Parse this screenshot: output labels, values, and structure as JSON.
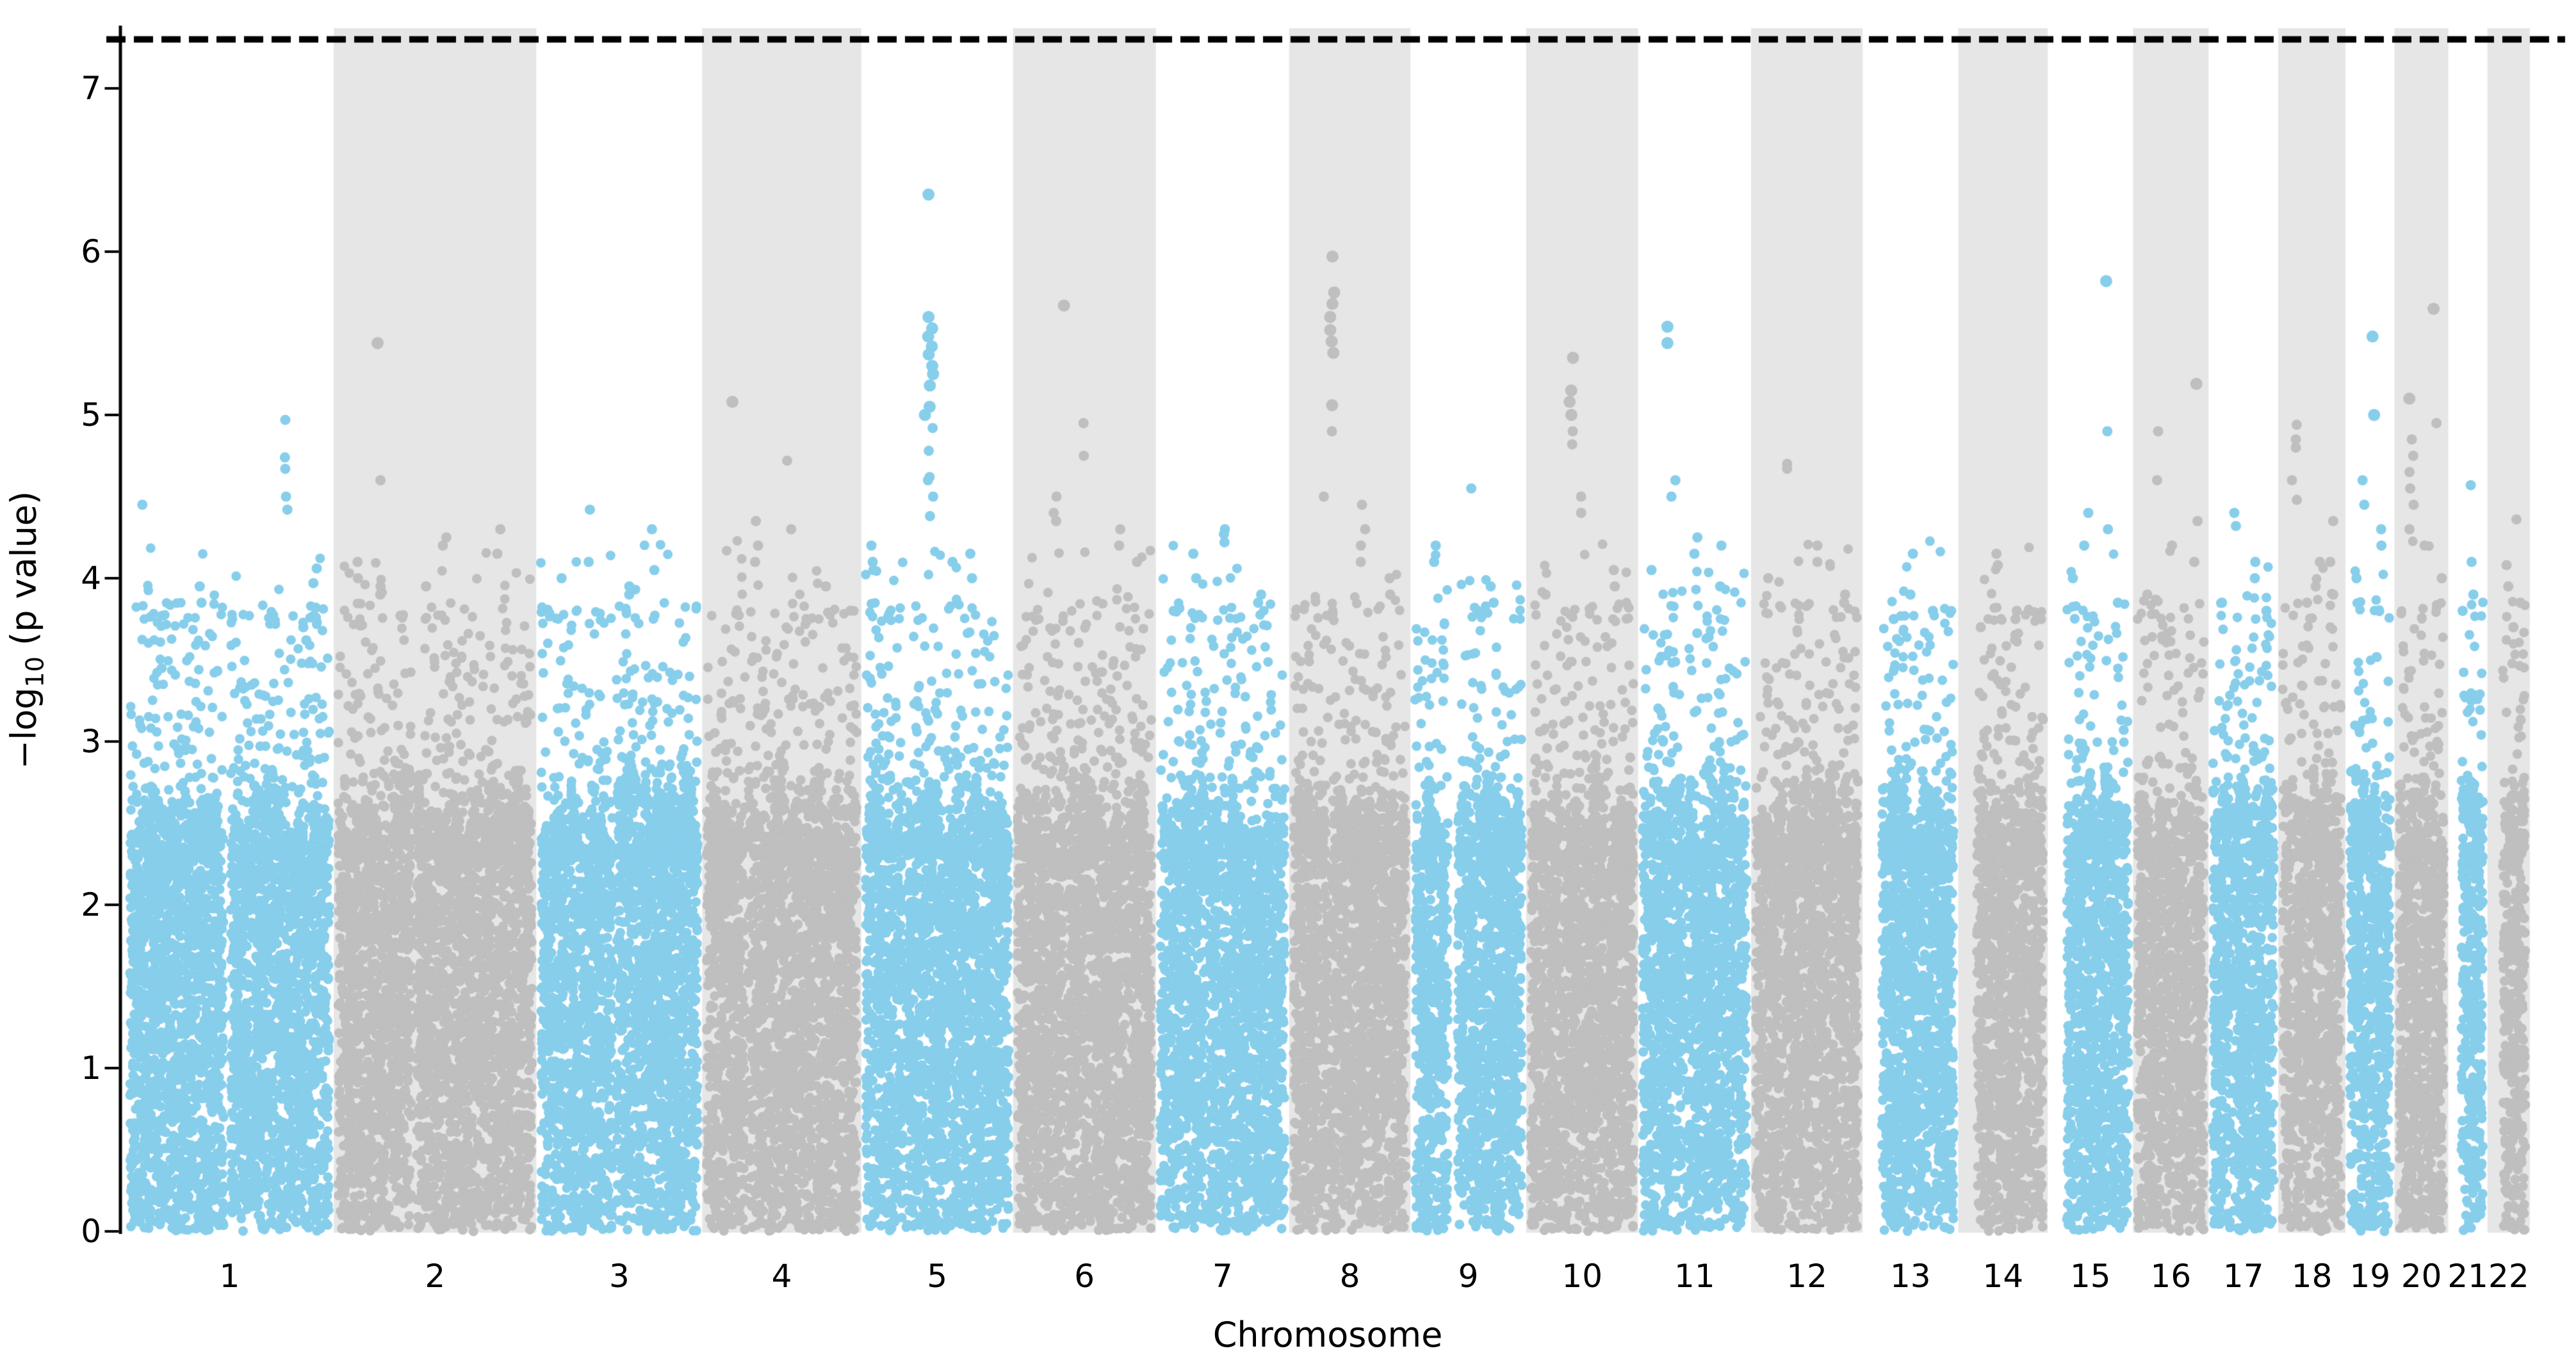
{
  "chart_data": {
    "type": "scatter",
    "subtype": "manhattan-gwas",
    "title": "",
    "xlabel": "Chromosome",
    "ylabel": "-log10 (p value)",
    "ylabel_parts": {
      "prefix": "−log",
      "sub": "10",
      "suffix": " (p value)"
    },
    "ylim": [
      0,
      7.37
    ],
    "yticks": [
      0,
      1,
      2,
      3,
      4,
      5,
      6,
      7
    ],
    "x_tick_labels": [
      "1",
      "2",
      "3",
      "4",
      "5",
      "6",
      "7",
      "8",
      "9",
      "10",
      "11",
      "12",
      "13",
      "14",
      "15",
      "16",
      "17",
      "18",
      "19",
      "20",
      "21",
      "22"
    ],
    "grid": false,
    "legend": "none",
    "threshold_line": {
      "value_neg_log10_p": 7.3,
      "style": "dashed",
      "color": "#000000"
    },
    "colors": {
      "odd_chromosome_points": "#87ceeb",
      "even_chromosome_points": "#bfbfbf",
      "even_chromosome_band": "#e6e6e6",
      "axis": "#000000",
      "background": "#ffffff"
    },
    "point_distribution": {
      "dense_floor_max": 2.35,
      "dense_noise_amplitude": 0.55,
      "mid_scatter_range": [
        2.3,
        3.85
      ],
      "high_scatter_range": [
        3.75,
        4.25
      ],
      "random_seed": 1337
    },
    "chromosomes": [
      {
        "name": "1",
        "length_mb": 249.0,
        "color": "blue",
        "band": false,
        "gaps": [
          [
            0.47,
            0.505
          ]
        ],
        "clusters": [
          [
            0.78,
            [
              4.97,
              4.74,
              4.67,
              4.5,
              4.42
            ]
          ],
          [
            0.05,
            [
              4.45
            ]
          ],
          [
            0.93,
            [
              4.06,
              3.97,
              3.82,
              3.76
            ]
          ],
          [
            0.35,
            [
              3.95,
              3.85
            ]
          ],
          [
            0.88,
            [
              3.7,
              3.62
            ]
          ]
        ]
      },
      {
        "name": "2",
        "length_mb": 242.2,
        "color": "gray",
        "band": true,
        "gaps": [
          [
            0.38,
            0.405
          ]
        ],
        "clusters": [
          [
            0.21,
            [
              5.44
            ]
          ],
          [
            0.215,
            [
              4.6,
              3.95,
              3.9
            ]
          ],
          [
            0.55,
            [
              4.25,
              4.2
            ]
          ],
          [
            0.83,
            [
              4.3,
              4.15
            ]
          ],
          [
            0.1,
            [
              4.1,
              4.0
            ]
          ],
          [
            0.45,
            [
              3.95
            ]
          ]
        ]
      },
      {
        "name": "3",
        "length_mb": 198.3,
        "color": "blue",
        "band": false,
        "gaps": [
          [
            0.455,
            0.48
          ]
        ],
        "clusters": [
          [
            0.32,
            [
              4.42,
              4.1
            ]
          ],
          [
            0.72,
            [
              4.3,
              4.05
            ]
          ],
          [
            0.55,
            [
              3.95,
              3.9
            ]
          ],
          [
            0.12,
            [
              4.0
            ]
          ]
        ]
      },
      {
        "name": "4",
        "length_mb": 190.2,
        "color": "gray",
        "band": true,
        "gaps": [
          [
            0.255,
            0.278
          ]
        ],
        "clusters": [
          [
            0.16,
            [
              5.08
            ]
          ],
          [
            0.55,
            [
              4.72,
              4.3
            ]
          ],
          [
            0.33,
            [
              4.35,
              4.2,
              4.1
            ]
          ],
          [
            0.8,
            [
              3.95
            ]
          ]
        ]
      },
      {
        "name": "5",
        "length_mb": 181.5,
        "color": "blue",
        "band": false,
        "gaps": [
          [
            0.26,
            0.283
          ]
        ],
        "clusters": [
          [
            0.455,
            [
              6.35,
              5.6,
              5.53,
              5.48,
              5.42,
              5.37,
              5.3,
              5.25,
              5.18,
              5.05,
              4.92,
              4.78,
              4.62,
              4.5,
              4.38
            ]
          ],
          [
            0.42,
            [
              5.0,
              4.6
            ]
          ],
          [
            0.05,
            [
              4.2,
              4.1,
              4.05
            ]
          ],
          [
            0.75,
            [
              4.15,
              4.0
            ]
          ],
          [
            0.6,
            [
              4.1
            ]
          ]
        ]
      },
      {
        "name": "6",
        "length_mb": 170.8,
        "color": "gray",
        "band": true,
        "gaps": [
          [
            0.355,
            0.378
          ]
        ],
        "clusters": [
          [
            0.35,
            [
              5.67
            ]
          ],
          [
            0.5,
            [
              4.95,
              4.75
            ]
          ],
          [
            0.28,
            [
              4.5,
              4.4,
              4.35
            ]
          ],
          [
            0.75,
            [
              4.3,
              4.2
            ]
          ],
          [
            0.9,
            [
              4.1
            ]
          ]
        ]
      },
      {
        "name": "7",
        "length_mb": 159.3,
        "color": "blue",
        "band": false,
        "gaps": [
          [
            0.375,
            0.398
          ]
        ],
        "clusters": [
          [
            0.52,
            [
              4.3,
              4.27,
              4.22
            ]
          ],
          [
            0.28,
            [
              4.15,
              4.0
            ]
          ],
          [
            0.8,
            [
              3.9,
              3.85
            ]
          ],
          [
            0.1,
            [
              3.8
            ]
          ]
        ]
      },
      {
        "name": "8",
        "length_mb": 145.1,
        "color": "gray",
        "band": true,
        "gaps": [
          [
            0.305,
            0.328
          ]
        ],
        "clusters": [
          [
            0.34,
            [
              5.97,
              5.75,
              5.68,
              5.6,
              5.52,
              5.45,
              5.38,
              5.06,
              4.9
            ]
          ],
          [
            0.62,
            [
              4.45,
              4.3,
              4.2,
              4.1
            ]
          ],
          [
            0.25,
            [
              4.5
            ]
          ],
          [
            0.85,
            [
              4.0,
              3.9
            ]
          ]
        ]
      },
      {
        "name": "9",
        "length_mb": 138.4,
        "color": "blue",
        "band": false,
        "gaps": [
          [
            0.31,
            0.4
          ]
        ],
        "clusters": [
          [
            0.52,
            [
              4.55
            ]
          ],
          [
            0.18,
            [
              4.2,
              4.1
            ]
          ],
          [
            0.72,
            [
              3.95,
              3.85
            ]
          ],
          [
            0.6,
            [
              3.8
            ]
          ]
        ]
      },
      {
        "name": "10",
        "length_mb": 133.8,
        "color": "gray",
        "band": true,
        "gaps": [
          [
            0.295,
            0.318
          ]
        ],
        "clusters": [
          [
            0.4,
            [
              5.35,
              5.15,
              5.08,
              5.0,
              4.9,
              4.82
            ]
          ],
          [
            0.47,
            [
              4.5,
              4.4
            ]
          ],
          [
            0.82,
            [
              4.05,
              3.95
            ]
          ],
          [
            0.15,
            [
              3.9
            ]
          ]
        ]
      },
      {
        "name": "11",
        "length_mb": 135.1,
        "color": "blue",
        "band": false,
        "gaps": [
          [
            0.395,
            0.42
          ]
        ],
        "clusters": [
          [
            0.26,
            [
              5.54,
              5.44
            ]
          ],
          [
            0.3,
            [
              4.6,
              4.5
            ]
          ],
          [
            0.52,
            [
              4.25,
              4.15
            ]
          ],
          [
            0.75,
            [
              4.2,
              3.95
            ]
          ],
          [
            0.08,
            [
              4.05
            ]
          ]
        ]
      },
      {
        "name": "12",
        "length_mb": 133.3,
        "color": "gray",
        "band": true,
        "gaps": [
          [
            0.27,
            0.292
          ]
        ],
        "clusters": [
          [
            0.29,
            [
              4.7,
              4.67
            ]
          ],
          [
            0.6,
            [
              4.2,
              4.1
            ]
          ],
          [
            0.1,
            [
              4.0
            ]
          ],
          [
            0.85,
            [
              3.9,
              3.85
            ]
          ]
        ]
      },
      {
        "name": "13",
        "length_mb": 114.4,
        "color": "blue",
        "band": false,
        "gaps": [
          [
            0.0,
            0.17
          ]
        ],
        "clusters": [
          [
            0.5,
            [
              4.15,
              3.9
            ]
          ],
          [
            0.75,
            [
              3.8
            ]
          ],
          [
            0.3,
            [
              3.75
            ]
          ]
        ]
      },
      {
        "name": "14",
        "length_mb": 107.0,
        "color": "gray",
        "band": true,
        "gaps": [
          [
            0.0,
            0.175
          ]
        ],
        "clusters": [
          [
            0.44,
            [
              4.15,
              4.08
            ]
          ],
          [
            0.68,
            [
              3.8,
              3.75
            ]
          ],
          [
            0.25,
            [
              3.7
            ]
          ]
        ]
      },
      {
        "name": "15",
        "length_mb": 102.0,
        "color": "blue",
        "band": false,
        "gaps": [
          [
            0.0,
            0.19
          ]
        ],
        "clusters": [
          [
            0.74,
            [
              5.82,
              4.9,
              4.3
            ]
          ],
          [
            0.45,
            [
              4.4,
              4.2
            ]
          ],
          [
            0.3,
            [
              4.0
            ]
          ],
          [
            0.88,
            [
              3.85
            ]
          ]
        ]
      },
      {
        "name": "16",
        "length_mb": 90.3,
        "color": "gray",
        "band": true,
        "gaps": [
          [
            0.4,
            0.428
          ]
        ],
        "clusters": [
          [
            0.85,
            [
              5.19
            ]
          ],
          [
            0.3,
            [
              4.9,
              4.6
            ]
          ],
          [
            0.55,
            [
              4.2
            ]
          ],
          [
            0.12,
            [
              3.9
            ]
          ],
          [
            0.88,
            [
              4.35,
              4.1
            ]
          ]
        ]
      },
      {
        "name": "17",
        "length_mb": 83.3,
        "color": "blue",
        "band": false,
        "gaps": [
          [
            0.29,
            0.313
          ]
        ],
        "clusters": [
          [
            0.35,
            [
              4.4,
              4.32
            ]
          ],
          [
            0.68,
            [
              4.1,
              4.0
            ]
          ],
          [
            0.15,
            [
              3.85
            ]
          ],
          [
            0.85,
            [
              3.8
            ]
          ]
        ]
      },
      {
        "name": "18",
        "length_mb": 80.4,
        "color": "gray",
        "band": true,
        "gaps": [
          [
            0.2,
            0.223
          ]
        ],
        "clusters": [
          [
            0.2,
            [
              4.94,
              4.85,
              4.8,
              4.6,
              4.48
            ]
          ],
          [
            0.6,
            [
              4.1,
              3.95
            ]
          ],
          [
            0.4,
            [
              3.85
            ]
          ],
          [
            0.85,
            [
              4.35,
              4.1,
              3.9
            ]
          ]
        ]
      },
      {
        "name": "19",
        "length_mb": 58.6,
        "color": "blue",
        "band": false,
        "gaps": [
          [
            0.44,
            0.468
          ]
        ],
        "clusters": [
          [
            0.54,
            [
              5.48,
              5.0
            ]
          ],
          [
            0.3,
            [
              4.6,
              4.45
            ]
          ],
          [
            0.75,
            [
              4.3,
              4.2
            ]
          ],
          [
            0.15,
            [
              4.0
            ]
          ]
        ]
      },
      {
        "name": "20",
        "length_mb": 64.4,
        "color": "gray",
        "band": true,
        "gaps": [
          [
            0.465,
            0.488
          ]
        ],
        "clusters": [
          [
            0.78,
            [
              5.65,
              4.95
            ]
          ],
          [
            0.27,
            [
              5.1,
              4.85,
              4.75,
              4.65,
              4.55,
              4.45,
              4.3
            ]
          ],
          [
            0.55,
            [
              4.2
            ]
          ],
          [
            0.9,
            [
              4.0
            ]
          ]
        ]
      },
      {
        "name": "21",
        "length_mb": 46.7,
        "color": "blue",
        "band": false,
        "gaps": [
          [
            0.0,
            0.28
          ]
        ],
        "clusters": [
          [
            0.55,
            [
              4.57
            ]
          ],
          [
            0.65,
            [
              4.1,
              3.9
            ]
          ],
          [
            0.4,
            [
              3.8
            ]
          ]
        ]
      },
      {
        "name": "22",
        "length_mb": 50.8,
        "color": "gray",
        "band": true,
        "gaps": [
          [
            0.0,
            0.32
          ]
        ],
        "clusters": [
          [
            0.73,
            [
              4.36
            ]
          ],
          [
            0.5,
            [
              4.08,
              3.95
            ]
          ],
          [
            0.82,
            [
              3.85
            ]
          ],
          [
            0.6,
            [
              3.7
            ]
          ]
        ]
      }
    ]
  }
}
